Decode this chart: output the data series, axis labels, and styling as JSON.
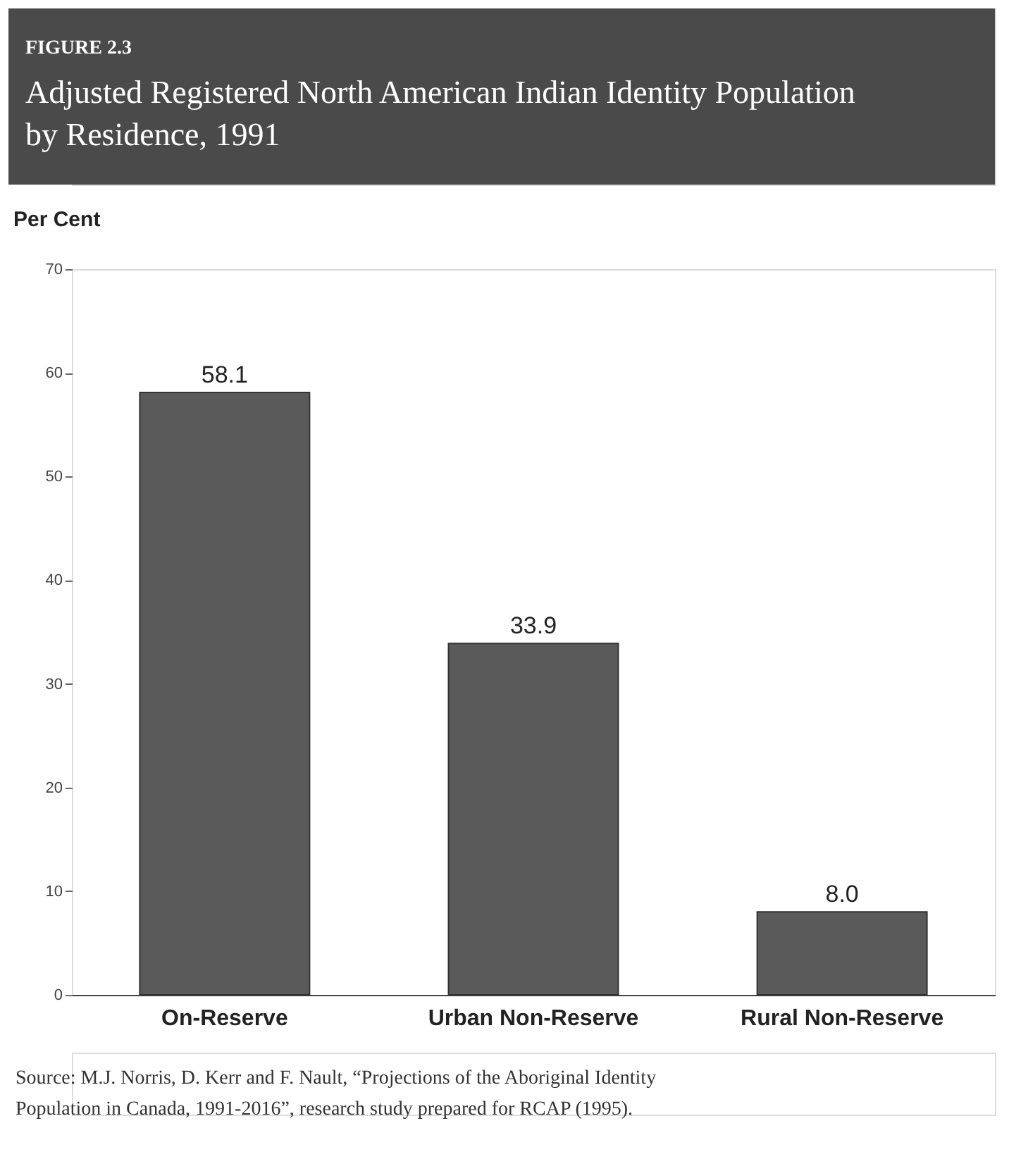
{
  "chart_data": {
    "type": "bar",
    "subtitle": "FIGURE 2.3",
    "title": "Adjusted Registered North American Indian Identity Population by Residence, 1991",
    "ylabel": "Per Cent",
    "categories": [
      "On-Reserve",
      "Urban Non-Reserve",
      "Rural Non-Reserve"
    ],
    "values": [
      58.1,
      33.9,
      8.0
    ],
    "value_labels": [
      "58.1",
      "33.9",
      "8.0"
    ],
    "color": "#5a5a5a",
    "ylim": [
      0,
      70
    ],
    "yticks": [
      0,
      10,
      20,
      30,
      40,
      50,
      60,
      70
    ],
    "grid": false,
    "annotations": [
      "Source: M.J. Norris, D. Kerr and F. Nault, “Projections of the Aboriginal Identity Population in Canada, 1991-2016”, research study prepared for RCAP (1995)."
    ]
  }
}
